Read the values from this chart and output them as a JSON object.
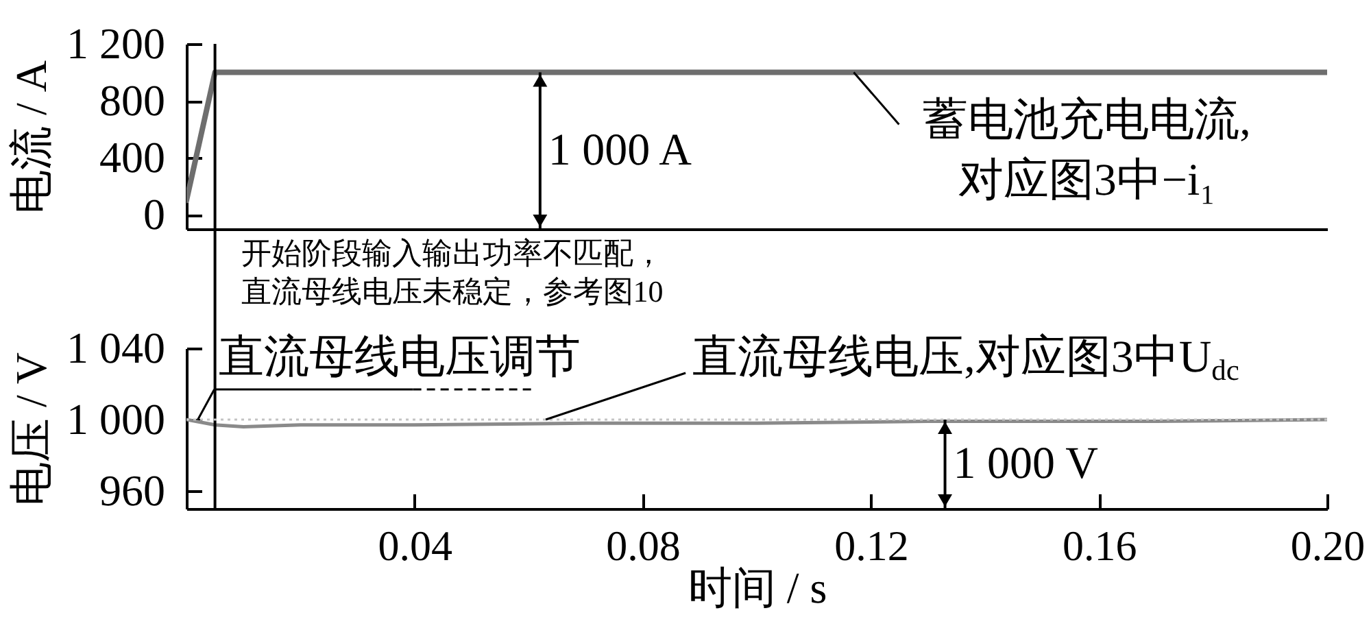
{
  "chart_data": [
    {
      "type": "line",
      "ylabel": "电流 / A",
      "x": [
        0,
        0.005,
        0.2
      ],
      "series": [
        {
          "color": "#6e6e6e",
          "values": [
            100,
            1000,
            1000
          ]
        }
      ],
      "xlim": [
        0,
        0.2
      ],
      "ylim": [
        -100,
        1200
      ],
      "yticks": [
        0,
        400,
        800,
        {
          "value": 1200,
          "label": "1 200"
        }
      ],
      "tick_labels": "y",
      "ref_lines": [
        {
          "axis": "x",
          "value": 0.005,
          "color": "#000000",
          "label": "开始阶段输入输出功率不匹配，直流母线电压未稳定，参考图10"
        }
      ],
      "annotations": [
        {
          "text": "1 000 A",
          "x": 0.062,
          "y": 1000
        },
        {
          "text": "蓄电池充电电流,\n对应图3中−i₁",
          "x": 0.117,
          "y": 1000
        }
      ]
    },
    {
      "type": "line",
      "xlabel": "时间 / s",
      "ylabel": "电压 / V",
      "x": [
        0,
        0.005,
        0.01,
        0.02,
        0.04,
        0.07,
        0.1,
        0.13,
        0.17,
        0.2
      ],
      "series": [
        {
          "color": "#8a8a8a",
          "values": [
            1000,
            997,
            996,
            997,
            997,
            998,
            998,
            999,
            999,
            1000
          ]
        }
      ],
      "xlim": [
        0,
        0.2
      ],
      "xticks": [
        0.04,
        0.08,
        0.12,
        0.16,
        {
          "value": 0.2,
          "label": "0.20"
        }
      ],
      "ylim": [
        950,
        1040
      ],
      "yticks": [
        960,
        {
          "value": 1000,
          "label": "1 000"
        },
        {
          "value": 1040,
          "label": "1 040"
        }
      ],
      "ref_lines": [
        {
          "axis": "x",
          "value": 0.005,
          "color": "#000000"
        },
        {
          "axis": "y",
          "value": 1000,
          "color": "#c4c4c4",
          "line_style": "dotted"
        }
      ],
      "annotations": [
        {
          "text": "直流母线电压调节",
          "x": 0.002,
          "y": 1000
        },
        {
          "text": "直流母线电压,对应图3中U$_{dc}$",
          "x": 0.063,
          "y": 1000
        },
        {
          "text": "1 000 V",
          "x": 0.133,
          "y": 1000
        }
      ]
    }
  ]
}
